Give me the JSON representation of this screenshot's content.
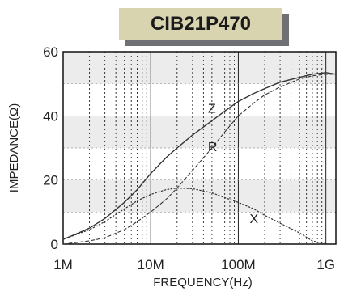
{
  "chart_data": {
    "type": "line",
    "title": "CIB21P470",
    "xlabel": "FREQUENCY(Hz)",
    "ylabel": "IMPEDANCE(Ω)",
    "x_scale": "log",
    "xlim": [
      1000000,
      1300000000
    ],
    "ylim": [
      0,
      60
    ],
    "x_tick_values": [
      1000000,
      10000000,
      100000000,
      1000000000
    ],
    "x_tick_labels": [
      "1M",
      "10M",
      "100M",
      "1G"
    ],
    "y_ticks": [
      0,
      20,
      40,
      60
    ],
    "grid": true,
    "series": [
      {
        "name": "Z",
        "line_style": "solid",
        "color": "#333333",
        "x": [
          1000000,
          1500000,
          2000000,
          3000000,
          5000000,
          7000000,
          10000000,
          15000000,
          20000000,
          30000000,
          50000000,
          70000000,
          100000000,
          150000000,
          200000000,
          300000000,
          500000000,
          700000000,
          1000000000,
          1300000000
        ],
        "values": [
          1.5,
          3.5,
          5,
          8,
          13,
          17,
          22,
          27,
          30,
          34,
          38.5,
          41.5,
          44.5,
          47,
          48.5,
          50.5,
          52,
          53,
          53.5,
          53
        ]
      },
      {
        "name": "R",
        "line_style": "dashed",
        "color": "#333333",
        "x": [
          1000000,
          2000000,
          3000000,
          5000000,
          7000000,
          10000000,
          15000000,
          20000000,
          30000000,
          50000000,
          70000000,
          100000000,
          150000000,
          200000000,
          300000000,
          500000000,
          700000000,
          1000000000,
          1300000000
        ],
        "values": [
          0,
          1,
          2,
          4.5,
          7,
          10,
          14,
          17.5,
          23,
          30,
          35,
          40,
          44,
          46.5,
          49,
          51.5,
          52.5,
          53,
          53
        ]
      },
      {
        "name": "X",
        "line_style": "dotted",
        "color": "#333333",
        "x": [
          1000000,
          2000000,
          3000000,
          5000000,
          7000000,
          10000000,
          15000000,
          20000000,
          30000000,
          50000000,
          70000000,
          100000000,
          150000000,
          200000000,
          300000000,
          500000000,
          700000000,
          1000000000
        ],
        "values": [
          1.5,
          4.5,
          7,
          11,
          13.5,
          15.5,
          17,
          17.5,
          17.3,
          16,
          14.5,
          13,
          11,
          9,
          6.5,
          3.5,
          1,
          0
        ]
      }
    ]
  }
}
